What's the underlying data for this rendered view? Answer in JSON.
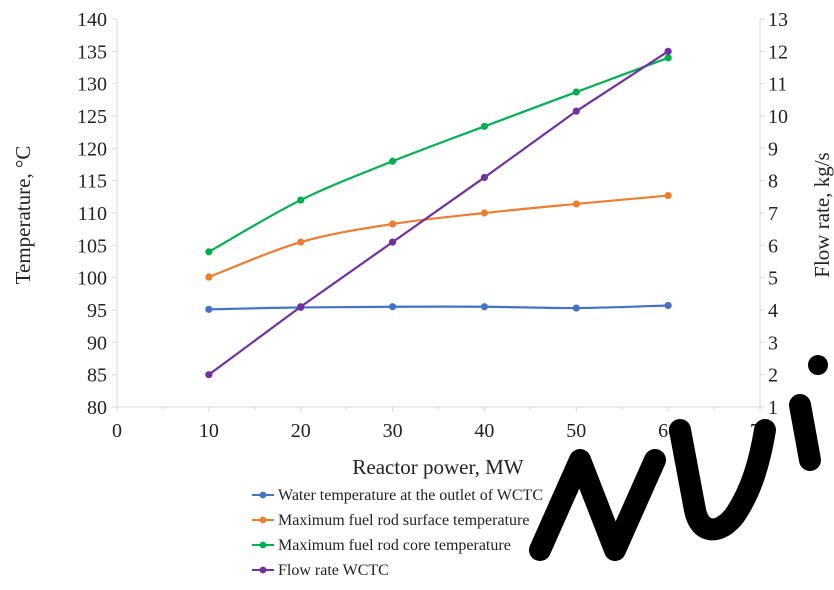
{
  "chart_data": {
    "type": "line",
    "x": [
      10,
      20,
      30,
      40,
      50,
      60
    ],
    "xlabel": "Reactor power, MW",
    "ylabel": "Temperature, °C",
    "y2label": "Flow rate, kg/s",
    "xlim": [
      0,
      70
    ],
    "ylim": [
      80,
      140
    ],
    "y2lim": [
      1,
      13
    ],
    "xticks": [
      "0",
      "10",
      "20",
      "30",
      "40",
      "50",
      "60",
      "70"
    ],
    "yticks": [
      "80",
      "85",
      "90",
      "95",
      "100",
      "105",
      "110",
      "115",
      "120",
      "125",
      "130",
      "135",
      "140"
    ],
    "y2ticks": [
      "1",
      "2",
      "3",
      "4",
      "5",
      "6",
      "7",
      "8",
      "9",
      "10",
      "11",
      "12",
      "13"
    ],
    "grid": false,
    "legend_position": "bottom",
    "series": [
      {
        "name": "Water temperature at the outlet of WCTC",
        "axis": "left",
        "color": "#4472c4",
        "values": [
          95.1,
          95.4,
          95.5,
          95.5,
          95.3,
          95.7
        ]
      },
      {
        "name": "Maximum fuel rod surface temperature",
        "axis": "left",
        "color": "#ed7d31",
        "values": [
          100.1,
          105.5,
          108.3,
          110.0,
          111.4,
          112.7
        ]
      },
      {
        "name": "Maximum fuel  rod core temperature",
        "axis": "left",
        "color": "#00b050",
        "values": [
          104.0,
          112.0,
          118.0,
          123.4,
          128.7,
          134.0
        ]
      },
      {
        "name": "Flow rate WCTC",
        "axis": "right",
        "color": "#7030a0",
        "values": [
          2.0,
          4.1,
          6.1,
          8.1,
          10.15,
          12.0
        ]
      }
    ]
  }
}
